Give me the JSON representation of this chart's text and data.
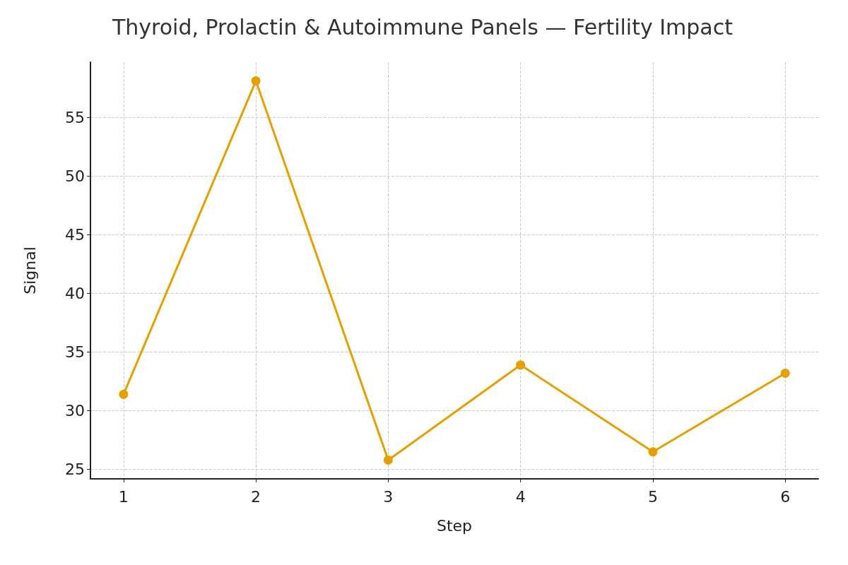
{
  "chart_data": {
    "type": "line",
    "title": "Thyroid, Prolactin & Autoimmune Panels — Fertility Impact",
    "xlabel": "Step",
    "ylabel": "Signal",
    "x": [
      1,
      2,
      3,
      4,
      5,
      6
    ],
    "series": [
      {
        "color": "#e69f00",
        "values": [
          31.4,
          58.1,
          25.8,
          33.9,
          26.5,
          33.2
        ]
      }
    ],
    "xlim": [
      0.75,
      6.25
    ],
    "xticks": [
      1,
      2,
      3,
      4,
      5,
      6
    ],
    "ylim": [
      24.2,
      59.7
    ],
    "yticks": [
      25,
      30,
      35,
      40,
      45,
      50,
      55
    ],
    "grid": true,
    "marker": "circle",
    "line_style": "solid"
  }
}
